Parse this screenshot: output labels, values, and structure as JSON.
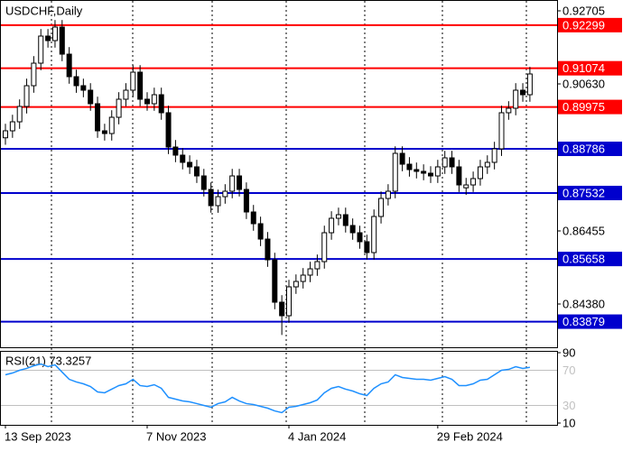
{
  "chart_data": [
    {
      "type": "candlestick",
      "title": "USDCHF,Daily",
      "categories": [
        "13 Sep 2023",
        null,
        null,
        null,
        null,
        null,
        null,
        null,
        null,
        null,
        null,
        null,
        null,
        null,
        null,
        null,
        null,
        null,
        null,
        null,
        "7 Nov 2023",
        null,
        null,
        null,
        null,
        null,
        null,
        null,
        null,
        null,
        null,
        null,
        null,
        null,
        null,
        null,
        null,
        null,
        null,
        null,
        "4 Jan 2024",
        null,
        null,
        null,
        null,
        null,
        null,
        null,
        null,
        null,
        null,
        null,
        null,
        null,
        null,
        null,
        null,
        null,
        null,
        null,
        null,
        "29 Feb 2024",
        null,
        null,
        null,
        null,
        null,
        null,
        null,
        null,
        null,
        null,
        null,
        null,
        null
      ],
      "open": [
        0.891,
        0.89298,
        0.89554,
        0.8999,
        0.90579,
        0.91219,
        0.91988,
        0.9186,
        0.92244,
        0.91475,
        0.90835,
        0.90579,
        0.90451,
        0.90067,
        0.89298,
        0.89221,
        0.89682,
        0.90195,
        0.90451,
        0.90963,
        0.90195,
        0.90067,
        0.90323,
        0.89811,
        0.88837,
        0.88607,
        0.88402,
        0.88274,
        0.88017,
        0.87633,
        0.87172,
        0.87428,
        0.87582,
        0.88017,
        0.87633,
        0.86993,
        0.8666,
        0.86224,
        0.85635,
        0.84431,
        0.84047,
        0.84867,
        0.8502,
        0.852,
        0.85379,
        0.85584,
        0.86404,
        0.86814,
        0.86916,
        0.86609,
        0.86404,
        0.86148,
        0.8584,
        0.86865,
        0.87377,
        0.87582,
        0.88658,
        0.8835,
        0.88197,
        0.88146,
        0.88094,
        0.88017,
        0.88274,
        0.8853,
        0.88274,
        0.8768,
        0.87761,
        0.87941,
        0.88274,
        0.88402,
        0.88786,
        0.89811,
        0.89939,
        0.90451,
        0.90323
      ],
      "high": [
        0.89498,
        0.89754,
        0.9019,
        0.90779,
        0.91419,
        0.92188,
        0.92188,
        0.92444,
        0.92444,
        0.91675,
        0.91035,
        0.90779,
        0.90651,
        0.90267,
        0.89498,
        0.89882,
        0.90395,
        0.90651,
        0.91163,
        0.91163,
        0.90395,
        0.90523,
        0.90523,
        0.90011,
        0.89037,
        0.88807,
        0.88602,
        0.88474,
        0.88217,
        0.87833,
        0.87628,
        0.87782,
        0.88217,
        0.88217,
        0.87833,
        0.87193,
        0.8686,
        0.86424,
        0.85835,
        0.84631,
        0.85067,
        0.8522,
        0.854,
        0.85579,
        0.85784,
        0.86604,
        0.87014,
        0.87116,
        0.87116,
        0.86809,
        0.86604,
        0.86348,
        0.87065,
        0.87577,
        0.87782,
        0.88858,
        0.88858,
        0.8855,
        0.88397,
        0.88346,
        0.88294,
        0.88474,
        0.8873,
        0.8873,
        0.88474,
        0.87961,
        0.88141,
        0.88474,
        0.88602,
        0.88986,
        0.90011,
        0.90139,
        0.90651,
        0.90651,
        0.91112
      ],
      "low": [
        0.889,
        0.89098,
        0.89354,
        0.8979,
        0.90379,
        0.91019,
        0.9166,
        0.9166,
        0.91275,
        0.90635,
        0.90379,
        0.90251,
        0.89867,
        0.89098,
        0.89021,
        0.89021,
        0.89482,
        0.89995,
        0.90251,
        0.89995,
        0.89867,
        0.89867,
        0.89611,
        0.88637,
        0.88407,
        0.88202,
        0.88074,
        0.87817,
        0.87433,
        0.86972,
        0.86972,
        0.87228,
        0.87382,
        0.87433,
        0.86793,
        0.8646,
        0.86024,
        0.85435,
        0.84231,
        0.835,
        0.83847,
        0.84667,
        0.8482,
        0.85,
        0.85179,
        0.85384,
        0.86204,
        0.86614,
        0.86409,
        0.86204,
        0.85948,
        0.8564,
        0.8564,
        0.86665,
        0.87177,
        0.87382,
        0.8815,
        0.87997,
        0.87946,
        0.87894,
        0.87817,
        0.87817,
        0.88074,
        0.88074,
        0.87561,
        0.8748,
        0.87561,
        0.87741,
        0.88074,
        0.88202,
        0.88586,
        0.89611,
        0.89739,
        0.90123,
        0.90123
      ],
      "close": [
        0.89298,
        0.89554,
        0.8999,
        0.90579,
        0.91219,
        0.91988,
        0.9186,
        0.92244,
        0.91475,
        0.90835,
        0.90579,
        0.90451,
        0.90067,
        0.89298,
        0.89221,
        0.89682,
        0.90195,
        0.90451,
        0.90963,
        0.90195,
        0.90067,
        0.90323,
        0.89811,
        0.88837,
        0.88607,
        0.88402,
        0.88274,
        0.88017,
        0.87633,
        0.87172,
        0.87428,
        0.87582,
        0.88017,
        0.87633,
        0.86993,
        0.8666,
        0.86224,
        0.85635,
        0.84431,
        0.84047,
        0.84867,
        0.8502,
        0.852,
        0.85379,
        0.85584,
        0.86404,
        0.86814,
        0.86916,
        0.86609,
        0.86404,
        0.86148,
        0.8584,
        0.86865,
        0.87377,
        0.87582,
        0.88658,
        0.8835,
        0.88197,
        0.88146,
        0.88094,
        0.88017,
        0.88274,
        0.8853,
        0.88274,
        0.87761,
        0.87761,
        0.87941,
        0.88274,
        0.88402,
        0.88786,
        0.89811,
        0.89939,
        0.90451,
        0.90323,
        0.90912
      ],
      "up_color": "#ffffff",
      "down_color": "#000000",
      "ylim": [
        0.83151,
        0.92987
      ],
      "yticks": [
        0.92705,
        {
          "value": 0.9063,
          "label": "0.90630"
        },
        0.86455,
        {
          "value": 0.8438,
          "label": "0.84380"
        }
      ],
      "levels": [
        {
          "value": 0.92299,
          "color": "#ff0000"
        },
        {
          "value": 0.91074,
          "color": "#ff0000"
        },
        {
          "value": 0.89975,
          "color": "#ff0000"
        },
        {
          "value": 0.88786,
          "color": "#0000cd"
        },
        {
          "value": 0.87532,
          "color": "#0000cd"
        },
        {
          "value": 0.85658,
          "color": "#0000cd"
        },
        {
          "value": 0.83879,
          "color": "#0000cd"
        }
      ]
    },
    {
      "type": "line",
      "title": "RSI(21) 73.3257",
      "color": "#1e90ff",
      "values": [
        64.9,
        66.9,
        70.0,
        72.1,
        75.1,
        77.2,
        74.1,
        76.2,
        67.9,
        59.7,
        56.7,
        54.6,
        51.5,
        45.4,
        44.4,
        48.5,
        52.6,
        54.6,
        59.7,
        52.6,
        51.5,
        53.6,
        49.5,
        39.2,
        37.2,
        35.1,
        34.1,
        32.1,
        30.0,
        28.0,
        32.1,
        34.1,
        39.2,
        35.1,
        32.1,
        31.0,
        29.0,
        26.9,
        23.8,
        21.8,
        28.0,
        29.0,
        31.0,
        33.1,
        36.2,
        44.4,
        49.5,
        51.5,
        48.5,
        46.4,
        43.3,
        41.3,
        49.5,
        54.6,
        56.7,
        64.9,
        61.8,
        60.8,
        59.7,
        59.7,
        58.7,
        60.8,
        62.8,
        59.7,
        52.6,
        52.6,
        54.6,
        58.7,
        59.7,
        64.9,
        70.0,
        71.0,
        74.1,
        72.1,
        73.3257
      ],
      "ylim": [
        10,
        90
      ],
      "yticks": [
        90,
        10
      ],
      "levels": [
        70,
        30
      ],
      "level_color": "#c0c0c0"
    }
  ]
}
